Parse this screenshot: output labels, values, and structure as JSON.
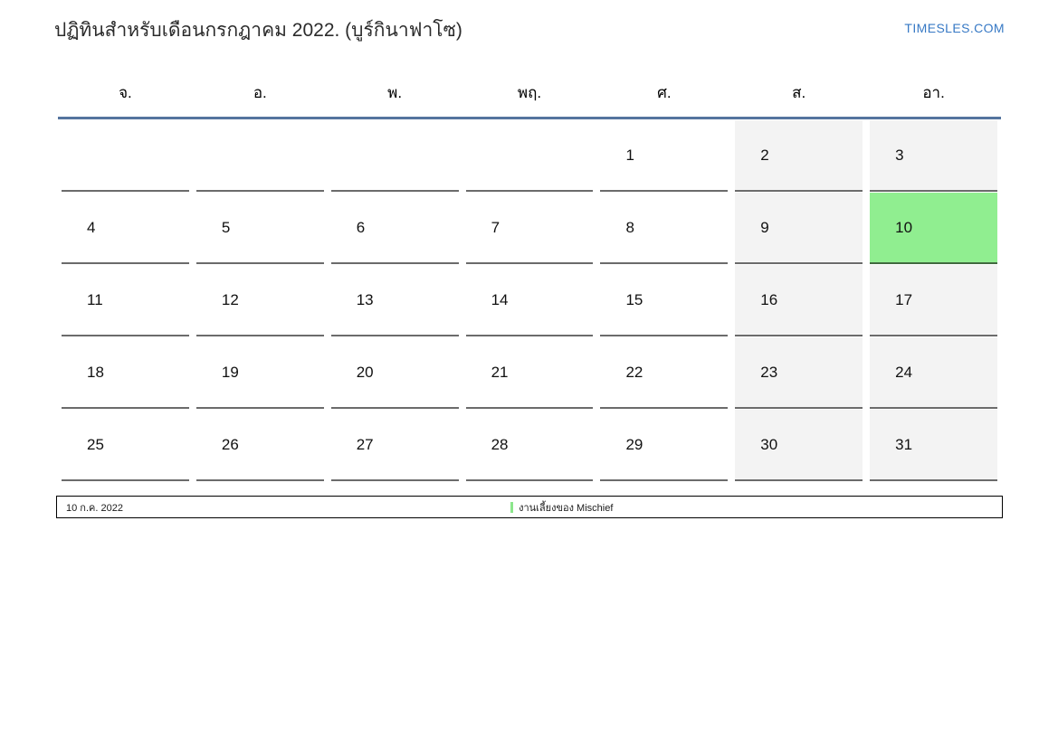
{
  "title": "ปฏิทินสำหรับเดือนกรกฎาคม 2022. (บูร์กินาฟาโซ)",
  "site_link": "TIMESLES.COM",
  "calendar": {
    "weekdays": [
      "จ.",
      "อ.",
      "พ.",
      "พฤ.",
      "ศ.",
      "ส.",
      "อา."
    ],
    "weeks": [
      [
        "",
        "",
        "",
        "",
        "1",
        "2",
        "3"
      ],
      [
        "4",
        "5",
        "6",
        "7",
        "8",
        "9",
        "10"
      ],
      [
        "11",
        "12",
        "13",
        "14",
        "15",
        "16",
        "17"
      ],
      [
        "18",
        "19",
        "20",
        "21",
        "22",
        "23",
        "24"
      ],
      [
        "25",
        "26",
        "27",
        "28",
        "29",
        "30",
        "31"
      ]
    ],
    "weekend_columns": [
      5,
      6
    ],
    "today": "10"
  },
  "footer": {
    "date": "10 ก.ค. 2022",
    "event": "งานเลี้ยงของ Mischief"
  },
  "colors": {
    "accent_line": "#54749e",
    "weekend_bg": "#f3f3f3",
    "today_bg": "#90ee90",
    "today_border": "#41693f",
    "cell_border": "#6b6b6b",
    "site_link": "#3779c5",
    "event_marker": "#8ce68c"
  }
}
